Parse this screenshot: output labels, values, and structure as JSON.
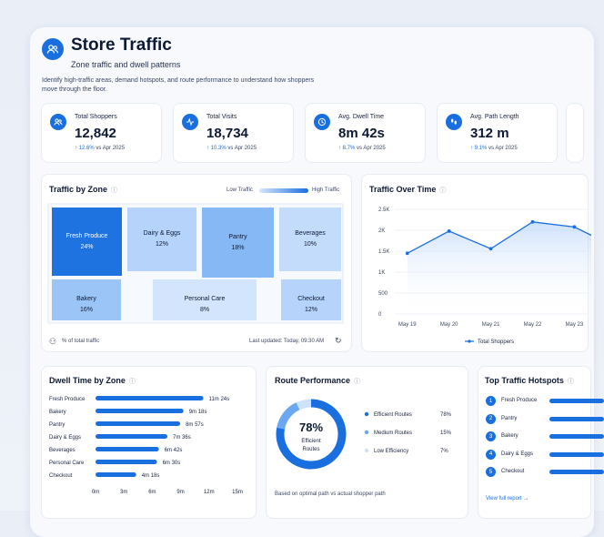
{
  "header": {
    "title": "Store Traffic",
    "subtitle": "Zone traffic and dwell patterns",
    "description": "Identify high-traffic areas, demand hotspots, and route performance to understand how shoppers move through the floor."
  },
  "kpis": [
    {
      "label": "Total Shoppers",
      "value": "12,842",
      "change": "↑ 12.6%",
      "suffix": "vs Apr 2025",
      "icon": "people-icon"
    },
    {
      "label": "Total Visits",
      "value": "18,734",
      "change": "↑ 10.3%",
      "suffix": "vs Apr 2025",
      "icon": "activity-icon"
    },
    {
      "label": "Avg. Dwell Time",
      "value": "8m 42s",
      "change": "↑ 8.7%",
      "suffix": "vs Apr 2025",
      "icon": "clock-icon"
    },
    {
      "label": "Avg. Path Length",
      "value": "312 m",
      "change": "↑ 9.1%",
      "suffix": "vs Apr 2025",
      "icon": "footsteps-icon"
    }
  ],
  "zones": {
    "title": "Traffic by Zone",
    "legend_low": "Low Traffic",
    "legend_high": "High Traffic",
    "footer_note": "% of total traffic",
    "updated": "Last updated: Today, 09:30 AM",
    "items": [
      {
        "name": "Fresh Produce",
        "pct": "24%",
        "color": "#1e73e0"
      },
      {
        "name": "Dairy & Eggs",
        "pct": "12%",
        "color": "#b5d3fb"
      },
      {
        "name": "Pantry",
        "pct": "18%",
        "color": "#86b8f6"
      },
      {
        "name": "Beverages",
        "pct": "10%",
        "color": "#c4dcfb"
      },
      {
        "name": "Bakery",
        "pct": "16%",
        "color": "#9cc5f7"
      },
      {
        "name": "Personal Care",
        "pct": "8%",
        "color": "#d3e5fc"
      },
      {
        "name": "Checkout",
        "pct": "12%",
        "color": "#b5d3fb"
      }
    ]
  },
  "traffic_over_time": {
    "title": "Traffic Over Time",
    "legend": "Total Shoppers",
    "chart_data": {
      "type": "line",
      "x": [
        "May 19",
        "May 20",
        "May 21",
        "May 22",
        "May 23"
      ],
      "series": [
        {
          "name": "Total Shoppers",
          "values": [
            1450,
            1980,
            1560,
            2200,
            2080
          ]
        }
      ],
      "yticks": [
        "0",
        "500",
        "1K",
        "1.5K",
        "2K",
        "2.5K"
      ],
      "ylim": [
        0,
        2500
      ]
    }
  },
  "dwell": {
    "title": "Dwell Time by Zone",
    "chart_data": {
      "type": "bar",
      "categories": [
        "Fresh Produce",
        "Bakery",
        "Pantry",
        "Dairy & Eggs",
        "Beverages",
        "Personal Care",
        "Checkout"
      ],
      "values": [
        11.4,
        9.3,
        8.95,
        7.6,
        6.7,
        6.5,
        4.3
      ],
      "labels": [
        "11m 24s",
        "9m 18s",
        "8m 57s",
        "7m 36s",
        "6m 42s",
        "6m 30s",
        "4m 18s"
      ],
      "xticks": [
        "0m",
        "3m",
        "6m",
        "9m",
        "12m",
        "15m"
      ],
      "xlim": [
        0,
        15
      ]
    }
  },
  "routes": {
    "title": "Route Performance",
    "center_value": "78%",
    "center_label_1": "Efficient",
    "center_label_2": "Routes",
    "footnote": "Based on optimal path vs actual shopper path",
    "chart_data": {
      "type": "pie",
      "categories": [
        "Efficient Routes",
        "Medium Routes",
        "Low Efficiency"
      ],
      "values": [
        78,
        15,
        7
      ],
      "labels": [
        "78%",
        "15%",
        "7%"
      ]
    },
    "colors": [
      "#1a6fe0",
      "#6aa8f2",
      "#cfe2fb"
    ]
  },
  "hotspots": {
    "title": "Top Traffic Hotspots",
    "items": [
      "Fresh Produce",
      "Pantry",
      "Bakery",
      "Dairy & Eggs",
      "Checkout"
    ],
    "link": "View full report →"
  }
}
